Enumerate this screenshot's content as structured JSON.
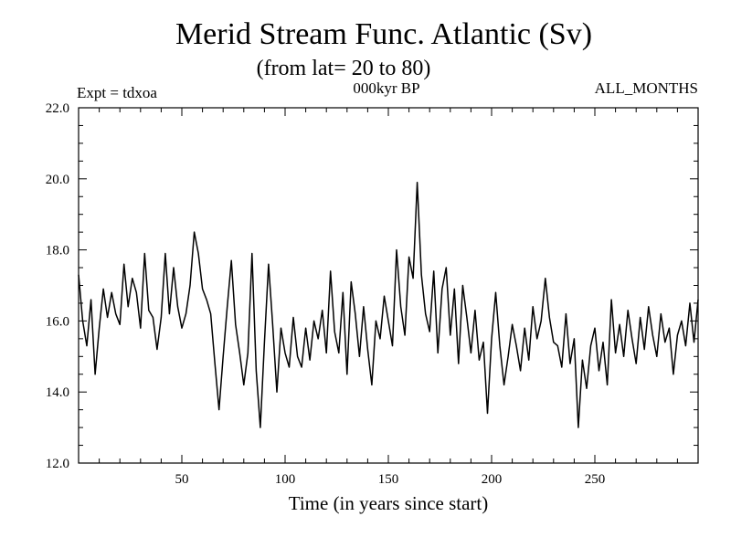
{
  "chart_data": {
    "type": "line",
    "title": "Merid Stream Func. Atlantic (Sv)",
    "subtitle": "(from lat= 20 to 80)",
    "expt_label": "Expt = tdxoa",
    "center_label": "000kyr BP",
    "right_label": "ALL_MONTHS",
    "xlabel": "Time (in years since start)",
    "ylabel": "",
    "xlim": [
      0,
      300
    ],
    "ylim": [
      12.0,
      22.0
    ],
    "xticks": [
      50,
      100,
      150,
      200,
      250
    ],
    "xtick_labels": [
      "50",
      "100",
      "150",
      "200",
      "250"
    ],
    "yticks": [
      12.0,
      14.0,
      16.0,
      18.0,
      20.0,
      22.0
    ],
    "ytick_labels": [
      "12.0",
      "14.0",
      "16.0",
      "18.0",
      "20.0",
      "22.0"
    ],
    "grid": false,
    "line_color": "#000000",
    "series": [
      {
        "x": [
          0,
          2,
          4,
          6,
          8,
          10,
          12,
          14,
          16,
          18,
          20,
          22,
          24,
          26,
          28,
          30,
          32,
          34,
          36,
          38,
          40,
          42,
          44,
          46,
          48,
          50,
          52,
          54,
          56,
          58,
          60,
          62,
          64,
          66,
          68,
          70,
          72,
          74,
          76,
          78,
          80,
          82,
          84,
          86,
          88,
          90,
          92,
          94,
          96,
          98,
          100,
          102,
          104,
          106,
          108,
          110,
          112,
          114,
          116,
          118,
          120,
          122,
          124,
          126,
          128,
          130,
          132,
          134,
          136,
          138,
          140,
          142,
          144,
          146,
          148,
          150,
          152,
          154,
          156,
          158,
          160,
          162,
          164,
          166,
          168,
          170,
          172,
          174,
          176,
          178,
          180,
          182,
          184,
          186,
          188,
          190,
          192,
          194,
          196,
          198,
          200,
          202,
          204,
          206,
          208,
          210,
          212,
          214,
          216,
          218,
          220,
          222,
          224,
          226,
          228,
          230,
          232,
          234,
          236,
          238,
          240,
          242,
          244,
          246,
          248,
          250,
          252,
          254,
          256,
          258,
          260,
          262,
          264,
          266,
          268,
          270,
          272,
          274,
          276,
          278,
          280,
          282,
          284,
          286,
          288,
          290,
          292,
          294,
          296,
          298,
          300
        ],
        "values": [
          17.3,
          16.0,
          15.3,
          16.6,
          14.5,
          15.8,
          16.9,
          16.1,
          16.8,
          16.2,
          15.9,
          17.6,
          16.4,
          17.2,
          16.8,
          15.8,
          17.9,
          16.3,
          16.1,
          15.2,
          16.1,
          17.9,
          16.2,
          17.5,
          16.4,
          15.8,
          16.2,
          17.0,
          18.5,
          17.9,
          16.9,
          16.6,
          16.2,
          14.8,
          13.5,
          15.0,
          16.4,
          17.7,
          15.9,
          15.1,
          14.2,
          15.1,
          17.9,
          14.6,
          13.0,
          15.4,
          17.6,
          15.9,
          14.0,
          15.8,
          15.1,
          14.7,
          16.1,
          15.0,
          14.7,
          15.8,
          14.9,
          16.0,
          15.5,
          16.3,
          15.1,
          17.4,
          15.7,
          15.1,
          16.8,
          14.5,
          17.1,
          16.2,
          15.0,
          16.4,
          15.2,
          14.2,
          16.0,
          15.5,
          16.7,
          16.0,
          15.3,
          18.0,
          16.4,
          15.6,
          17.8,
          17.2,
          19.9,
          17.3,
          16.2,
          15.7,
          17.4,
          15.1,
          16.9,
          17.5,
          15.6,
          16.9,
          14.8,
          17.0,
          16.1,
          15.1,
          16.3,
          14.9,
          15.4,
          13.4,
          15.5,
          16.8,
          15.3,
          14.2,
          15.0,
          15.9,
          15.3,
          14.6,
          15.8,
          14.9,
          16.4,
          15.5,
          16.0,
          17.2,
          16.1,
          15.4,
          15.3,
          14.7,
          16.2,
          14.8,
          15.5,
          13.0,
          14.9,
          14.1,
          15.3,
          15.8,
          14.6,
          15.4,
          14.2,
          16.6,
          15.1,
          15.9,
          15.0,
          16.3,
          15.5,
          14.8,
          16.1,
          15.2,
          16.4,
          15.6,
          15.0,
          16.2,
          15.4,
          15.8,
          14.5,
          15.6,
          16.0,
          15.3,
          16.5,
          15.4,
          16.6
        ]
      }
    ]
  }
}
